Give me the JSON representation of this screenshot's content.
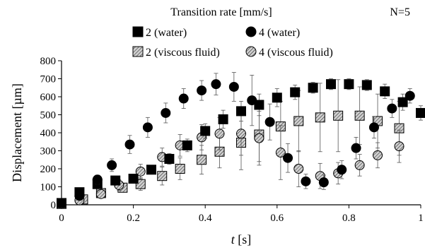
{
  "chart_data": {
    "type": "scatter",
    "legend_title": "Transition rate [mm/s]",
    "annotation": "N=5",
    "xlabel_var": "t",
    "xlabel_unit": " [s]",
    "ylabel": "Displacement [µm]",
    "xlim": [
      0,
      1
    ],
    "ylim": [
      0,
      800
    ],
    "xticks": [
      "0",
      "0.2",
      "0.4",
      "0.6",
      "0.8",
      "1"
    ],
    "yticks": [
      "0",
      "100",
      "200",
      "300",
      "400",
      "500",
      "600",
      "700",
      "800"
    ],
    "grid": false,
    "legend_position": "top",
    "series": [
      {
        "name": "2 (water)",
        "marker": "square",
        "fill": "#000000",
        "x": [
          0.0,
          0.05,
          0.1,
          0.15,
          0.2,
          0.25,
          0.3,
          0.35,
          0.4,
          0.45,
          0.5,
          0.55,
          0.6,
          0.65,
          0.7,
          0.75,
          0.8,
          0.85,
          0.9,
          0.95,
          1.0
        ],
        "y": [
          10,
          70,
          115,
          135,
          145,
          195,
          255,
          330,
          410,
          475,
          520,
          555,
          595,
          625,
          650,
          670,
          670,
          665,
          630,
          570,
          510
        ],
        "err": [
          0,
          20,
          20,
          20,
          20,
          25,
          30,
          35,
          40,
          50,
          55,
          60,
          50,
          40,
          30,
          30,
          30,
          30,
          40,
          45,
          40
        ]
      },
      {
        "name": "4 (water)",
        "marker": "circle",
        "fill": "#000000",
        "x": [
          0.0,
          0.05,
          0.1,
          0.14,
          0.19,
          0.24,
          0.29,
          0.34,
          0.39,
          0.43,
          0.48,
          0.53,
          0.58,
          0.63,
          0.68,
          0.73,
          0.78,
          0.82,
          0.87,
          0.92,
          0.97
        ],
        "y": [
          10,
          50,
          140,
          220,
          335,
          430,
          510,
          590,
          635,
          670,
          655,
          580,
          460,
          260,
          130,
          125,
          195,
          315,
          430,
          535,
          605
        ],
        "err": [
          0,
          15,
          25,
          35,
          50,
          55,
          55,
          55,
          55,
          60,
          80,
          140,
          100,
          80,
          40,
          40,
          50,
          60,
          60,
          50,
          40
        ]
      },
      {
        "name": "2 (viscous fluid)",
        "marker": "square",
        "fill": "hatch",
        "x": [
          0.0,
          0.06,
          0.11,
          0.17,
          0.22,
          0.28,
          0.33,
          0.39,
          0.44,
          0.5,
          0.55,
          0.61,
          0.66,
          0.72,
          0.77,
          0.83,
          0.88,
          0.94
        ],
        "y": [
          5,
          30,
          65,
          95,
          115,
          160,
          200,
          250,
          295,
          345,
          390,
          435,
          465,
          485,
          495,
          495,
          465,
          425
        ],
        "err": [
          0,
          15,
          20,
          25,
          35,
          50,
          60,
          80,
          90,
          150,
          150,
          140,
          170,
          190,
          200,
          160,
          150,
          150
        ]
      },
      {
        "name": "4 (viscous fluid)",
        "marker": "circle",
        "fill": "hatch",
        "x": [
          0.0,
          0.05,
          0.11,
          0.16,
          0.22,
          0.28,
          0.33,
          0.39,
          0.44,
          0.5,
          0.55,
          0.61,
          0.66,
          0.72,
          0.77,
          0.83,
          0.88,
          0.94
        ],
        "y": [
          5,
          25,
          60,
          110,
          185,
          265,
          330,
          375,
          395,
          395,
          370,
          290,
          200,
          160,
          175,
          220,
          275,
          325
        ],
        "err": [
          0,
          15,
          20,
          30,
          40,
          50,
          60,
          70,
          90,
          120,
          150,
          150,
          100,
          70,
          60,
          60,
          70,
          90
        ]
      }
    ]
  }
}
